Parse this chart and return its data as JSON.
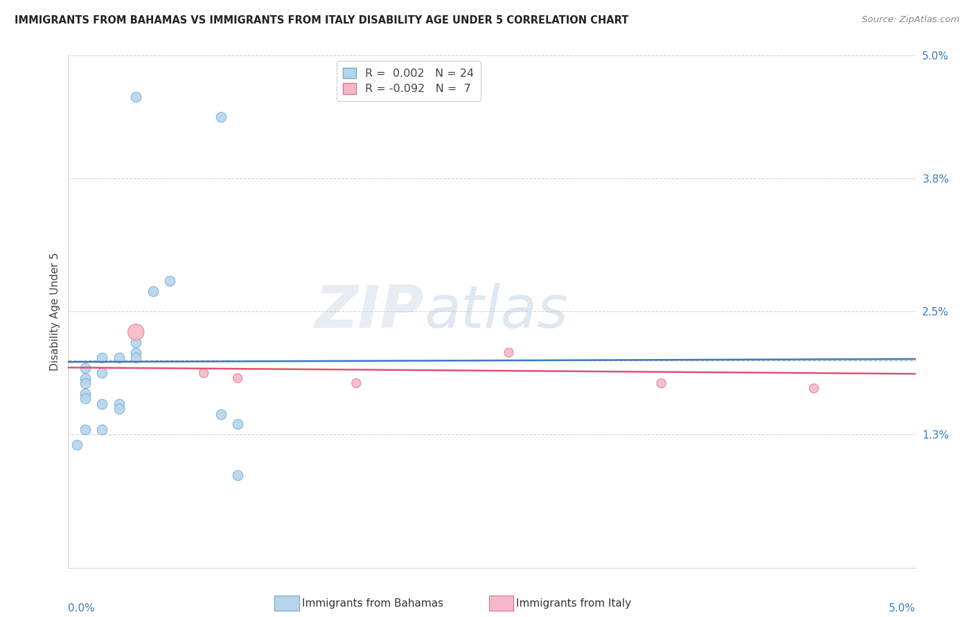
{
  "title": "IMMIGRANTS FROM BAHAMAS VS IMMIGRANTS FROM ITALY DISABILITY AGE UNDER 5 CORRELATION CHART",
  "source": "Source: ZipAtlas.com",
  "ylabel": "Disability Age Under 5",
  "right_yticks": [
    "5.0%",
    "3.8%",
    "2.5%",
    "1.3%"
  ],
  "right_ytick_vals": [
    0.05,
    0.038,
    0.025,
    0.013
  ],
  "xmin": 0.0,
  "xmax": 0.05,
  "ymin": 0.0,
  "ymax": 0.05,
  "watermark_zip": "ZIP",
  "watermark_atlas": "atlas",
  "bahamas_points": [
    [
      0.004,
      0.046
    ],
    [
      0.009,
      0.044
    ],
    [
      0.006,
      0.028
    ],
    [
      0.005,
      0.027
    ],
    [
      0.002,
      0.0205
    ],
    [
      0.003,
      0.0205
    ],
    [
      0.004,
      0.021
    ],
    [
      0.004,
      0.0205
    ],
    [
      0.004,
      0.022
    ],
    [
      0.001,
      0.0195
    ],
    [
      0.001,
      0.0185
    ],
    [
      0.002,
      0.019
    ],
    [
      0.001,
      0.018
    ],
    [
      0.001,
      0.017
    ],
    [
      0.001,
      0.0165
    ],
    [
      0.002,
      0.016
    ],
    [
      0.003,
      0.016
    ],
    [
      0.003,
      0.0155
    ],
    [
      0.009,
      0.015
    ],
    [
      0.01,
      0.014
    ],
    [
      0.001,
      0.0135
    ],
    [
      0.002,
      0.0135
    ],
    [
      0.0005,
      0.012
    ],
    [
      0.01,
      0.009
    ]
  ],
  "italy_points": [
    [
      0.004,
      0.023
    ],
    [
      0.008,
      0.019
    ],
    [
      0.01,
      0.0185
    ],
    [
      0.017,
      0.018
    ],
    [
      0.026,
      0.021
    ],
    [
      0.035,
      0.018
    ],
    [
      0.044,
      0.0175
    ]
  ],
  "italy_large_idx": 0,
  "bahamas_color": "#b8d4ec",
  "bahamas_edge_color": "#6aaad4",
  "italy_color": "#f5b8c8",
  "italy_edge_color": "#e0708a",
  "bahamas_line_color": "#3a7abf",
  "italy_line_color": "#e05070",
  "dashed_line_color": "#b0b8c8",
  "grid_color": "#d0d4da",
  "background_color": "#ffffff",
  "bahamas_R": 0.002,
  "italy_R": -0.092
}
